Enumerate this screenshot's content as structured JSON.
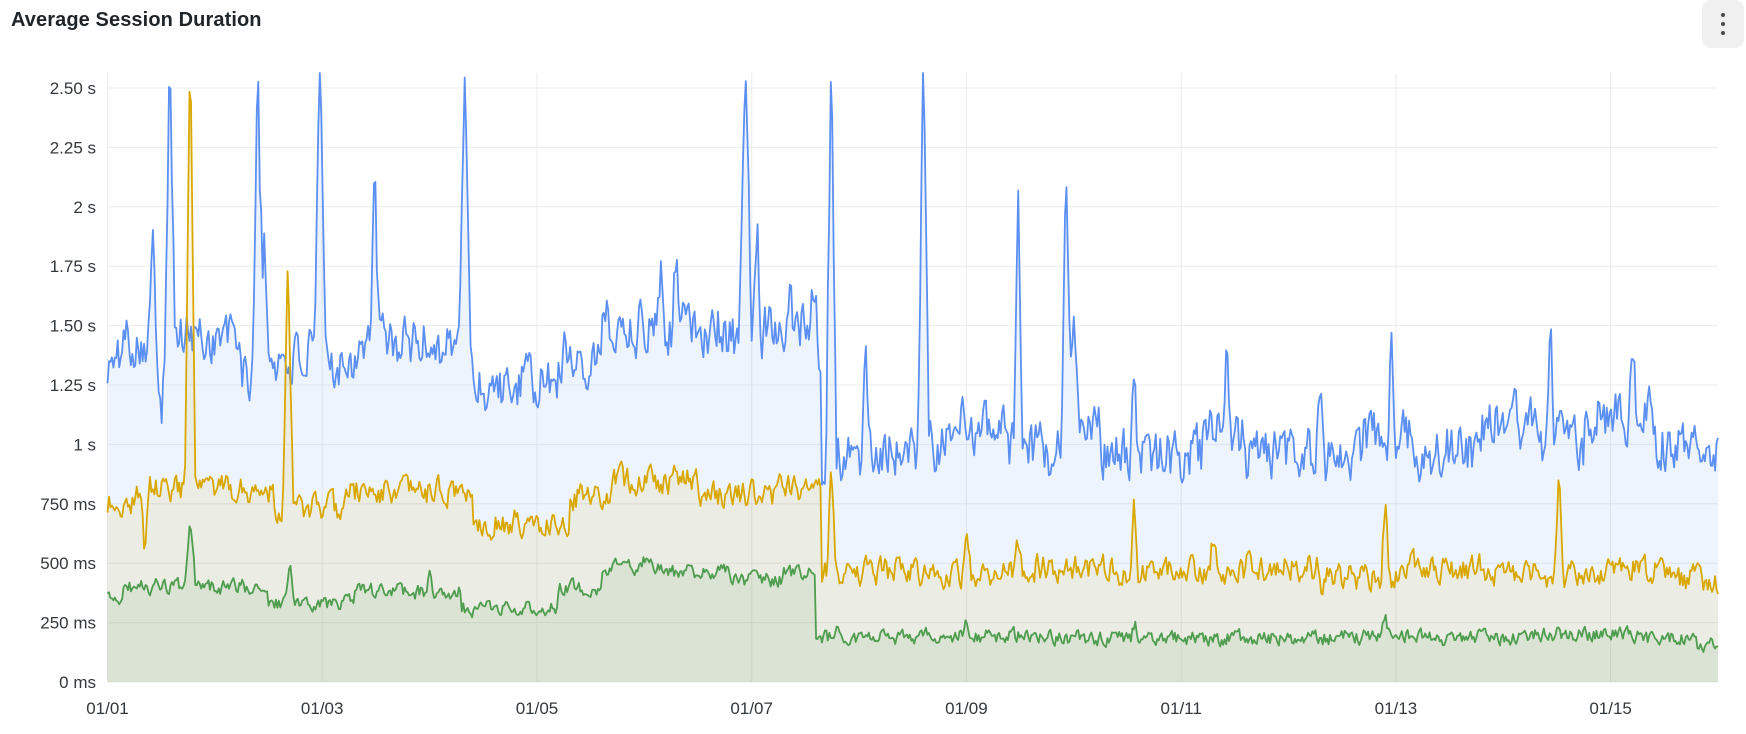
{
  "panel": {
    "title": "Average Session Duration",
    "menu_icon": "kebab-menu-icon",
    "background": "#ffffff",
    "title_color": "#1f2428"
  },
  "chart_data": {
    "type": "line",
    "title": "Average Session Duration",
    "legend": false,
    "grid": true,
    "grid_color": "#ececec",
    "unit": "seconds",
    "x_axis": {
      "range_days": [
        0,
        15
      ],
      "ticks": [
        {
          "d": 0,
          "label": "01/01"
        },
        {
          "d": 2,
          "label": "01/03"
        },
        {
          "d": 4,
          "label": "01/05"
        },
        {
          "d": 6,
          "label": "01/07"
        },
        {
          "d": 8,
          "label": "01/09"
        },
        {
          "d": 10,
          "label": "01/11"
        },
        {
          "d": 12,
          "label": "01/13"
        },
        {
          "d": 14,
          "label": "01/15"
        }
      ]
    },
    "y_axis": {
      "range_s": [
        0,
        2.5
      ],
      "clip_max_s": 2.563,
      "ticks": [
        {
          "v": 0,
          "label": "0 ms"
        },
        {
          "v": 0.25,
          "label": "250 ms"
        },
        {
          "v": 0.5,
          "label": "500 ms"
        },
        {
          "v": 0.75,
          "label": "750 ms"
        },
        {
          "v": 1,
          "label": "1 s"
        },
        {
          "v": 1.25,
          "label": "1.25 s"
        },
        {
          "v": 1.5,
          "label": "1.50 s"
        },
        {
          "v": 1.75,
          "label": "1.75 s"
        },
        {
          "v": 2,
          "label": "2 s"
        },
        {
          "v": 2.25,
          "label": "2.25 s"
        },
        {
          "v": 2.5,
          "label": "2.50 s"
        }
      ]
    },
    "series": [
      {
        "id": "blue",
        "color": "#5B8FF2",
        "fill_opacity": 0.1,
        "stroke_width": 1.8,
        "noise_amp": 0.2,
        "seed": 101,
        "segments": [
          [
            0,
            0.12,
            1.33
          ],
          [
            0.12,
            1.25,
            1.45
          ],
          [
            1.25,
            1.5,
            1.27
          ],
          [
            1.5,
            2.3,
            1.36
          ],
          [
            2.3,
            3.4,
            1.43
          ],
          [
            3.4,
            4.2,
            1.25
          ],
          [
            4.2,
            4.6,
            1.38
          ],
          [
            4.6,
            5.7,
            1.5
          ],
          [
            5.7,
            6.1,
            1.44
          ],
          [
            6.1,
            6.5,
            1.52
          ],
          [
            6.5,
            6.65,
            1.4
          ],
          [
            6.65,
            7.1,
            0.96
          ],
          [
            7.1,
            7.9,
            0.99
          ],
          [
            7.9,
            8.4,
            1.09
          ],
          [
            8.4,
            8.9,
            0.97
          ],
          [
            8.9,
            9.25,
            1.1
          ],
          [
            9.25,
            10.2,
            0.95
          ],
          [
            10.2,
            10.6,
            1.04
          ],
          [
            10.6,
            11.7,
            0.96
          ],
          [
            11.7,
            12.2,
            1.03
          ],
          [
            12.2,
            12.8,
            0.97
          ],
          [
            12.8,
            13.3,
            1.09
          ],
          [
            13.3,
            13.75,
            1.0
          ],
          [
            13.75,
            14.4,
            1.13
          ],
          [
            14.4,
            15,
            1.0
          ]
        ],
        "spikes": [
          [
            0.42,
            1.82
          ],
          [
            0.5,
            1.18
          ],
          [
            0.58,
            2.65,
            0.05
          ],
          [
            1.4,
            2.65,
            0.05
          ],
          [
            1.46,
            1.85
          ],
          [
            1.98,
            2.65,
            0.05
          ],
          [
            2.49,
            2.12
          ],
          [
            3.33,
            2.65,
            0.05
          ],
          [
            3.75,
            1.13
          ],
          [
            5.15,
            1.78
          ],
          [
            5.3,
            1.88
          ],
          [
            5.94,
            2.65,
            0.06
          ],
          [
            6.05,
            1.92
          ],
          [
            6.35,
            1.75
          ],
          [
            6.58,
            1.7
          ],
          [
            6.74,
            2.65,
            0.05
          ],
          [
            6.85,
            0.85
          ],
          [
            7.06,
            1.58
          ],
          [
            7.6,
            2.65,
            0.05
          ],
          [
            8.48,
            2.02
          ],
          [
            8.93,
            2.18,
            0.05
          ],
          [
            9.0,
            1.45
          ],
          [
            9.56,
            1.35
          ],
          [
            10.42,
            1.38
          ],
          [
            11.3,
            1.33
          ],
          [
            11.96,
            1.42
          ],
          [
            13.44,
            1.55
          ],
          [
            14.2,
            1.33
          ],
          [
            14.92,
            0.9
          ]
        ]
      },
      {
        "id": "yellow",
        "color": "#D9A800",
        "fill_opacity": 0.1,
        "stroke_width": 1.8,
        "noise_amp": 0.1,
        "seed": 202,
        "segments": [
          [
            0,
            0.25,
            0.75
          ],
          [
            0.25,
            1.55,
            0.81
          ],
          [
            1.55,
            2.2,
            0.73
          ],
          [
            2.2,
            3.4,
            0.8
          ],
          [
            3.4,
            4.3,
            0.67
          ],
          [
            4.3,
            4.7,
            0.78
          ],
          [
            4.7,
            5.5,
            0.85
          ],
          [
            5.5,
            6.2,
            0.79
          ],
          [
            6.2,
            6.65,
            0.82
          ],
          [
            6.65,
            7.4,
            0.47
          ],
          [
            7.4,
            8.4,
            0.46
          ],
          [
            8.4,
            9.4,
            0.48
          ],
          [
            9.4,
            10.6,
            0.46
          ],
          [
            10.6,
            11.3,
            0.48
          ],
          [
            11.3,
            12.1,
            0.44
          ],
          [
            12.1,
            12.9,
            0.48
          ],
          [
            12.9,
            13.9,
            0.45
          ],
          [
            13.9,
            14.6,
            0.48
          ],
          [
            14.6,
            15,
            0.43
          ]
        ],
        "spikes": [
          [
            0.35,
            0.53
          ],
          [
            0.77,
            2.65,
            0.05
          ],
          [
            1.68,
            1.8,
            0.05
          ],
          [
            3.85,
            0.6
          ],
          [
            6.74,
            0.89
          ],
          [
            8.0,
            0.63
          ],
          [
            8.48,
            0.6
          ],
          [
            9.56,
            0.73
          ],
          [
            10.3,
            0.62
          ],
          [
            11.9,
            0.8
          ],
          [
            13.52,
            0.88
          ],
          [
            14.3,
            0.6
          ]
        ]
      },
      {
        "id": "green",
        "color": "#4F9D4E",
        "fill_opacity": 0.1,
        "stroke_width": 1.8,
        "noise_amp": 0.055,
        "seed": 303,
        "segments": [
          [
            0,
            0.15,
            0.35
          ],
          [
            0.15,
            1.5,
            0.4
          ],
          [
            1.5,
            2.3,
            0.33
          ],
          [
            2.3,
            3.3,
            0.38
          ],
          [
            3.3,
            4.2,
            0.31
          ],
          [
            4.2,
            4.6,
            0.4
          ],
          [
            4.6,
            5.2,
            0.48
          ],
          [
            5.2,
            5.8,
            0.46
          ],
          [
            5.8,
            6.3,
            0.43
          ],
          [
            6.3,
            6.6,
            0.46
          ],
          [
            6.6,
            7.5,
            0.185
          ],
          [
            7.5,
            8.6,
            0.195
          ],
          [
            8.6,
            11.5,
            0.185
          ],
          [
            11.5,
            12.3,
            0.19
          ],
          [
            12.3,
            13.2,
            0.185
          ],
          [
            13.2,
            14.3,
            0.2
          ],
          [
            14.3,
            14.8,
            0.18
          ],
          [
            14.8,
            15,
            0.155
          ]
        ],
        "spikes": [
          [
            0.77,
            0.66,
            0.05
          ],
          [
            1.7,
            0.5
          ],
          [
            3.0,
            0.44
          ],
          [
            5.0,
            0.52
          ],
          [
            6.8,
            0.28
          ],
          [
            8.0,
            0.25
          ],
          [
            9.57,
            0.26
          ],
          [
            11.9,
            0.27
          ],
          [
            13.5,
            0.24
          ],
          [
            14.97,
            0.13
          ]
        ]
      }
    ]
  }
}
